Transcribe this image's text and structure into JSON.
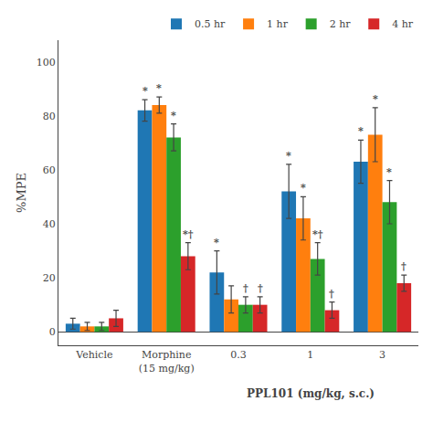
{
  "chart_data": {
    "type": "bar",
    "categories": [
      "Vehicle",
      "Morphine\n(15 mg/kg)",
      "0.3",
      "1",
      "3"
    ],
    "series": [
      {
        "name": "0.5 hr",
        "values": [
          3,
          82,
          22,
          52,
          63
        ],
        "errors": [
          2,
          4,
          8,
          10,
          8
        ]
      },
      {
        "name": "1 hr",
        "values": [
          2,
          84,
          12,
          42,
          73
        ],
        "errors": [
          1.5,
          3,
          5,
          8,
          10
        ]
      },
      {
        "name": "2 hr",
        "values": [
          2,
          72,
          10,
          27,
          48
        ],
        "errors": [
          1.5,
          5,
          3,
          6,
          8
        ]
      },
      {
        "name": "4 hr",
        "values": [
          5,
          28,
          10,
          8,
          18
        ],
        "errors": [
          3,
          5,
          3,
          3,
          3
        ]
      }
    ],
    "ylabel": "%MPE",
    "ylim": [
      -5,
      108
    ],
    "yticks": [
      0,
      20,
      40,
      60,
      80,
      100
    ],
    "grid": false,
    "legend": "upper right",
    "annotations": [
      {
        "category": "Morphine\n(15 mg/kg)",
        "series": "0.5 hr",
        "text": "*"
      },
      {
        "category": "Morphine\n(15 mg/kg)",
        "series": "1 hr",
        "text": "*"
      },
      {
        "category": "Morphine\n(15 mg/kg)",
        "series": "2 hr",
        "text": "*"
      },
      {
        "category": "Morphine\n(15 mg/kg)",
        "series": "4 hr",
        "text": "*†"
      },
      {
        "category": "0.3",
        "series": "0.5 hr",
        "text": "*"
      },
      {
        "category": "0.3",
        "series": "2 hr",
        "text": "†"
      },
      {
        "category": "0.3",
        "series": "4 hr",
        "text": "†"
      },
      {
        "category": "1",
        "series": "0.5 hr",
        "text": "*"
      },
      {
        "category": "1",
        "series": "1 hr",
        "text": "*"
      },
      {
        "category": "1",
        "series": "2 hr",
        "text": "*†"
      },
      {
        "category": "1",
        "series": "4 hr",
        "text": "†"
      },
      {
        "category": "3",
        "series": "0.5 hr",
        "text": "*"
      },
      {
        "category": "3",
        "series": "1 hr",
        "text": "*"
      },
      {
        "category": "3",
        "series": "2 hr",
        "text": "*"
      },
      {
        "category": "3",
        "series": "4 hr",
        "text": "†"
      },
      {
        "categories": [
          "0.3",
          "1",
          "3"
        ],
        "text": "PPL101 (mg/kg, s.c.)"
      }
    ]
  }
}
